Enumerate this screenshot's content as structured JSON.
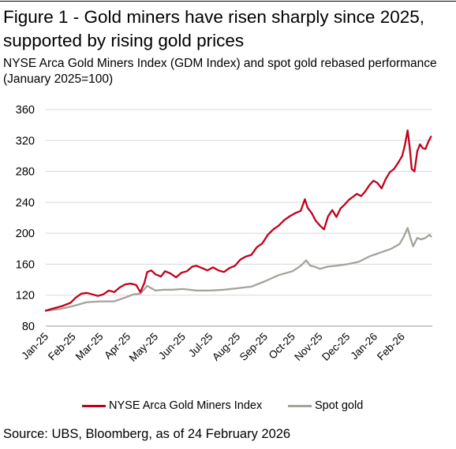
{
  "header": {
    "title": "Figure 1 - Gold miners have risen sharply since 2025, supported by rising gold prices",
    "subtitle": "NYSE Arca Gold Miners Index (GDM Index) and spot gold rebased performance (January 2025=100)"
  },
  "footer": {
    "source": "Source: UBS, Bloomberg, as of 24 February 2026"
  },
  "colors": {
    "gdm": "#c0001a",
    "gold": "#a3a39b",
    "grid": "#d8d8d8"
  },
  "chart_data": {
    "type": "line",
    "title": "Figure 1 - Gold miners have risen sharply since 2025, supported by rising gold prices",
    "subtitle": "NYSE Arca Gold Miners Index (GDM Index) and spot gold rebased performance (January 2025=100)",
    "xlabel": "",
    "ylabel": "",
    "ylim": [
      80,
      360
    ],
    "yticks": [
      80,
      120,
      160,
      200,
      240,
      280,
      320,
      360
    ],
    "x_tick_labels": [
      "Jan-25",
      "Feb-25",
      "Mar-25",
      "Apr-25",
      "May-25",
      "Jun-25",
      "Jul-25",
      "Aug-25",
      "Sep-25",
      "Oct-25",
      "Nov-25",
      "Dec-25",
      "Jan-26",
      "Feb-26"
    ],
    "x_tick_months": [
      0,
      1,
      2,
      3,
      4,
      5,
      6,
      7,
      8,
      9,
      10,
      11,
      12,
      13
    ],
    "x_range_months": [
      0,
      13.8
    ],
    "grid": true,
    "legend_position": "bottom",
    "series": [
      {
        "name": "NYSE Arca Gold Miners Index",
        "color": "#c0001a",
        "points": [
          [
            0.0,
            100
          ],
          [
            0.3,
            103
          ],
          [
            0.6,
            106
          ],
          [
            0.9,
            110
          ],
          [
            1.1,
            117
          ],
          [
            1.3,
            122
          ],
          [
            1.5,
            123
          ],
          [
            1.7,
            121
          ],
          [
            1.9,
            119
          ],
          [
            2.1,
            121
          ],
          [
            2.3,
            126
          ],
          [
            2.5,
            124
          ],
          [
            2.7,
            130
          ],
          [
            2.9,
            134
          ],
          [
            3.1,
            135
          ],
          [
            3.3,
            133
          ],
          [
            3.45,
            124
          ],
          [
            3.6,
            136
          ],
          [
            3.7,
            150
          ],
          [
            3.85,
            152
          ],
          [
            4.0,
            147
          ],
          [
            4.2,
            144
          ],
          [
            4.35,
            151
          ],
          [
            4.55,
            148
          ],
          [
            4.75,
            143
          ],
          [
            4.95,
            149
          ],
          [
            5.15,
            151
          ],
          [
            5.35,
            157
          ],
          [
            5.5,
            158
          ],
          [
            5.7,
            155
          ],
          [
            5.9,
            152
          ],
          [
            6.1,
            156
          ],
          [
            6.3,
            152
          ],
          [
            6.5,
            150
          ],
          [
            6.7,
            155
          ],
          [
            6.9,
            158
          ],
          [
            7.1,
            166
          ],
          [
            7.3,
            170
          ],
          [
            7.5,
            172
          ],
          [
            7.7,
            182
          ],
          [
            7.9,
            187
          ],
          [
            8.1,
            198
          ],
          [
            8.3,
            205
          ],
          [
            8.5,
            210
          ],
          [
            8.7,
            217
          ],
          [
            8.9,
            222
          ],
          [
            9.1,
            226
          ],
          [
            9.3,
            229
          ],
          [
            9.45,
            244
          ],
          [
            9.55,
            233
          ],
          [
            9.7,
            226
          ],
          [
            9.85,
            216
          ],
          [
            10.0,
            210
          ],
          [
            10.15,
            205
          ],
          [
            10.3,
            222
          ],
          [
            10.45,
            230
          ],
          [
            10.6,
            221
          ],
          [
            10.75,
            232
          ],
          [
            10.9,
            237
          ],
          [
            11.05,
            243
          ],
          [
            11.2,
            247
          ],
          [
            11.35,
            251
          ],
          [
            11.5,
            248
          ],
          [
            11.65,
            254
          ],
          [
            11.8,
            262
          ],
          [
            11.95,
            268
          ],
          [
            12.1,
            265
          ],
          [
            12.25,
            258
          ],
          [
            12.4,
            270
          ],
          [
            12.55,
            279
          ],
          [
            12.7,
            283
          ],
          [
            12.85,
            291
          ],
          [
            13.0,
            300
          ],
          [
            13.1,
            314
          ],
          [
            13.2,
            333
          ],
          [
            13.27,
            312
          ],
          [
            13.35,
            283
          ],
          [
            13.45,
            280
          ],
          [
            13.55,
            306
          ],
          [
            13.65,
            315
          ],
          [
            13.75,
            310
          ],
          [
            13.85,
            309
          ],
          [
            13.95,
            318
          ],
          [
            14.05,
            325
          ]
        ]
      },
      {
        "name": "Spot gold",
        "color": "#a3a39b",
        "points": [
          [
            0.0,
            100
          ],
          [
            0.5,
            102
          ],
          [
            1.0,
            106
          ],
          [
            1.5,
            111
          ],
          [
            2.0,
            112
          ],
          [
            2.5,
            112
          ],
          [
            2.9,
            117
          ],
          [
            3.2,
            121
          ],
          [
            3.45,
            122
          ],
          [
            3.55,
            126
          ],
          [
            3.7,
            132
          ],
          [
            3.85,
            129
          ],
          [
            4.0,
            126
          ],
          [
            4.3,
            127
          ],
          [
            4.6,
            127
          ],
          [
            5.0,
            128
          ],
          [
            5.5,
            126
          ],
          [
            6.0,
            126
          ],
          [
            6.5,
            127
          ],
          [
            7.0,
            129
          ],
          [
            7.5,
            131
          ],
          [
            8.0,
            138
          ],
          [
            8.5,
            146
          ],
          [
            9.0,
            151
          ],
          [
            9.3,
            158
          ],
          [
            9.5,
            165
          ],
          [
            9.65,
            158
          ],
          [
            9.8,
            157
          ],
          [
            10.0,
            154
          ],
          [
            10.3,
            157
          ],
          [
            10.6,
            158
          ],
          [
            11.0,
            160
          ],
          [
            11.4,
            163
          ],
          [
            11.8,
            170
          ],
          [
            12.2,
            175
          ],
          [
            12.6,
            180
          ],
          [
            12.9,
            186
          ],
          [
            13.05,
            195
          ],
          [
            13.2,
            207
          ],
          [
            13.3,
            194
          ],
          [
            13.4,
            183
          ],
          [
            13.55,
            194
          ],
          [
            13.7,
            192
          ],
          [
            13.85,
            194
          ],
          [
            14.0,
            198
          ],
          [
            14.05,
            196
          ]
        ]
      }
    ]
  },
  "legend": {
    "items": [
      {
        "label": "NYSE Arca Gold Miners Index"
      },
      {
        "label": "Spot gold"
      }
    ]
  }
}
